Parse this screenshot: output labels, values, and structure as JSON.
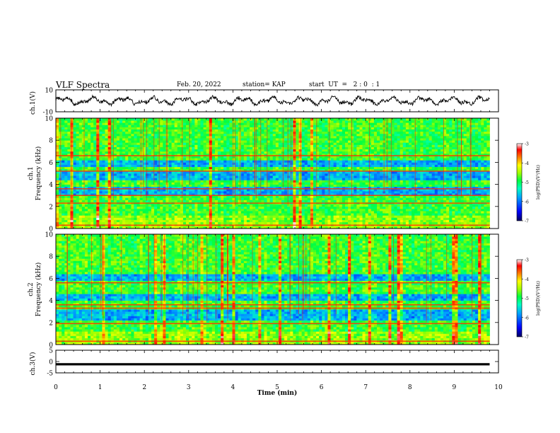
{
  "header": {
    "title": "VLF Spectra",
    "date": "Feb. 20, 2022",
    "station": "station= KAP",
    "start": "start  UT  =   2 : 0  : 1"
  },
  "chart_data": [
    {
      "type": "line",
      "panel": "ch1-waveform",
      "ylabel": "ch.1(V)",
      "ylim": [
        -10,
        10
      ],
      "yticks": [
        "10",
        "-10"
      ],
      "xlim": [
        0,
        10
      ],
      "description_values": {
        "x_end_min": 9.8,
        "approx_range_v": [
          -5,
          6
        ]
      }
    },
    {
      "type": "heatmap",
      "panel": "ch1-spectrogram",
      "ylabel": "ch.1 Frequency (kHz)",
      "ylim": [
        0,
        10
      ],
      "yticks": [
        "0",
        "2",
        "4",
        "6",
        "8",
        "10"
      ],
      "xlim": [
        0,
        10
      ],
      "x_data_end": 9.8,
      "strong_bands_khz": [
        0.3,
        2.3,
        3.0,
        3.6,
        5.2,
        6.6
      ],
      "weak_bands_khz": [
        [
          3.0,
          3.7
        ],
        [
          4.4,
          5.1
        ],
        [
          5.6,
          6.2
        ]
      ],
      "colorbar": {
        "label": "log(PSD)(V²/Hz)",
        "range": [
          -7,
          -3
        ],
        "ticks": [
          "-3",
          "-4",
          "-5",
          "-6",
          "-7"
        ],
        "colors": [
          "#000080",
          "#0000ff",
          "#00c0ff",
          "#00ff80",
          "#40ff00",
          "#ffff00",
          "#ff8000",
          "#ff0000",
          "#ffffff"
        ]
      }
    },
    {
      "type": "heatmap",
      "panel": "ch2-spectrogram",
      "ylabel": "ch.2 Frequency (kHz)",
      "ylim": [
        0,
        10
      ],
      "yticks": [
        "0",
        "2",
        "4",
        "6",
        "8",
        "10"
      ],
      "xlim": [
        0,
        10
      ],
      "x_data_end": 9.8,
      "strong_bands_khz": [
        0.3,
        1.9,
        3.3,
        3.6,
        5.6
      ],
      "weak_bands_khz": [
        [
          2.2,
          3.2
        ],
        [
          4.0,
          4.6
        ],
        [
          5.8,
          6.3
        ]
      ],
      "colorbar": {
        "label": "log(PSD)(V²/Hz)",
        "range": [
          -7,
          -3
        ],
        "ticks": [
          "-3",
          "-4",
          "-5",
          "-6",
          "-7"
        ]
      }
    },
    {
      "type": "line",
      "panel": "ch3-waveform",
      "ylabel": "ch.3(V)",
      "ylim": [
        -5,
        5
      ],
      "yticks": [
        "5",
        "0",
        "-5"
      ],
      "xlim": [
        0,
        10
      ],
      "band_v": [
        -0.7,
        -1.7
      ],
      "x_data_end": 9.8
    }
  ],
  "xaxis": {
    "label": "Time (min)",
    "ticks": [
      "0",
      "1",
      "2",
      "3",
      "4",
      "5",
      "6",
      "7",
      "8",
      "9",
      "10"
    ]
  }
}
